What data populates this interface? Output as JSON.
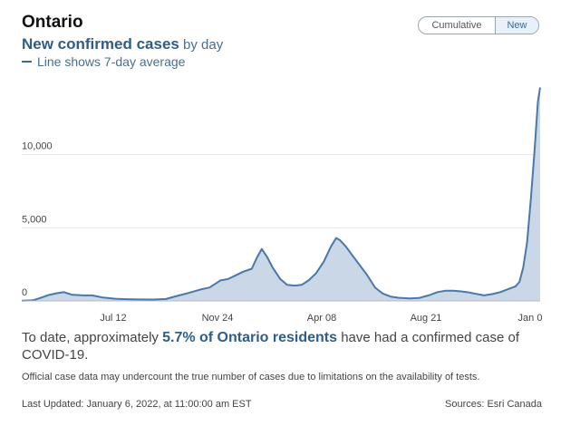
{
  "header": {
    "region": "Ontario",
    "subtitle_bold": "New confirmed cases",
    "subtitle_rest": " by day",
    "legend_text": "Line shows 7-day average"
  },
  "toggle": {
    "cumulative_label": "Cumulative",
    "new_label": "New",
    "selected": "New"
  },
  "chart_data": {
    "type": "area",
    "title": "New confirmed cases by day",
    "series_name": "7-day average",
    "x_tick_labels": [
      "Jul 12",
      "Nov 24",
      "Apr 08",
      "Aug 21",
      "Jan 0"
    ],
    "y_tick_labels": [
      "0",
      "5,000",
      "10,000"
    ],
    "y_ticks": [
      0,
      5000,
      10000
    ],
    "ylim": [
      0,
      15000
    ],
    "x_start": "2020-03-01",
    "x_end": "2022-01-06",
    "grid": true,
    "line_color": "#4a78a8",
    "fill_color": "#c9d7e6",
    "points": [
      [
        "2020-03-01",
        10
      ],
      [
        "2020-03-15",
        40
      ],
      [
        "2020-03-25",
        200
      ],
      [
        "2020-04-05",
        400
      ],
      [
        "2020-04-15",
        520
      ],
      [
        "2020-04-25",
        600
      ],
      [
        "2020-05-05",
        430
      ],
      [
        "2020-05-20",
        380
      ],
      [
        "2020-06-01",
        380
      ],
      [
        "2020-06-15",
        230
      ],
      [
        "2020-07-01",
        150
      ],
      [
        "2020-07-15",
        120
      ],
      [
        "2020-08-01",
        100
      ],
      [
        "2020-08-20",
        90
      ],
      [
        "2020-09-05",
        130
      ],
      [
        "2020-09-20",
        350
      ],
      [
        "2020-10-05",
        550
      ],
      [
        "2020-10-20",
        780
      ],
      [
        "2020-11-01",
        920
      ],
      [
        "2020-11-15",
        1400
      ],
      [
        "2020-11-25",
        1500
      ],
      [
        "2020-12-05",
        1750
      ],
      [
        "2020-12-15",
        2000
      ],
      [
        "2020-12-26",
        2200
      ],
      [
        "2021-01-02",
        3000
      ],
      [
        "2021-01-08",
        3550
      ],
      [
        "2021-01-15",
        3000
      ],
      [
        "2021-01-22",
        2300
      ],
      [
        "2021-02-01",
        1500
      ],
      [
        "2021-02-10",
        1100
      ],
      [
        "2021-02-20",
        1050
      ],
      [
        "2021-03-01",
        1100
      ],
      [
        "2021-03-10",
        1400
      ],
      [
        "2021-03-20",
        1900
      ],
      [
        "2021-03-30",
        2700
      ],
      [
        "2021-04-08",
        3700
      ],
      [
        "2021-04-15",
        4300
      ],
      [
        "2021-04-20",
        4150
      ],
      [
        "2021-04-28",
        3700
      ],
      [
        "2021-05-05",
        3200
      ],
      [
        "2021-05-15",
        2500
      ],
      [
        "2021-05-25",
        1800
      ],
      [
        "2021-06-05",
        900
      ],
      [
        "2021-06-15",
        500
      ],
      [
        "2021-06-25",
        300
      ],
      [
        "2021-07-05",
        220
      ],
      [
        "2021-07-20",
        170
      ],
      [
        "2021-08-01",
        200
      ],
      [
        "2021-08-15",
        400
      ],
      [
        "2021-08-25",
        600
      ],
      [
        "2021-09-05",
        700
      ],
      [
        "2021-09-15",
        700
      ],
      [
        "2021-09-25",
        650
      ],
      [
        "2021-10-05",
        580
      ],
      [
        "2021-10-15",
        480
      ],
      [
        "2021-10-25",
        380
      ],
      [
        "2021-11-05",
        470
      ],
      [
        "2021-11-15",
        600
      ],
      [
        "2021-11-25",
        800
      ],
      [
        "2021-12-05",
        1000
      ],
      [
        "2021-12-10",
        1300
      ],
      [
        "2021-12-15",
        2300
      ],
      [
        "2021-12-20",
        4000
      ],
      [
        "2021-12-25",
        7000
      ],
      [
        "2021-12-30",
        10500
      ],
      [
        "2022-01-03",
        13600
      ],
      [
        "2022-01-06",
        14600
      ]
    ]
  },
  "summary": {
    "prefix": "To date, approximately ",
    "highlight": "5.7% of Ontario residents",
    "suffix": " have had a confirmed case of COVID-19."
  },
  "footnote": "Official case data may undercount the true number of cases due to limitations on the availability of tests.",
  "last_updated": "Last Updated: January 6, 2022, at 11:00:00 am EST",
  "sources": "Sources: Esri Canada"
}
